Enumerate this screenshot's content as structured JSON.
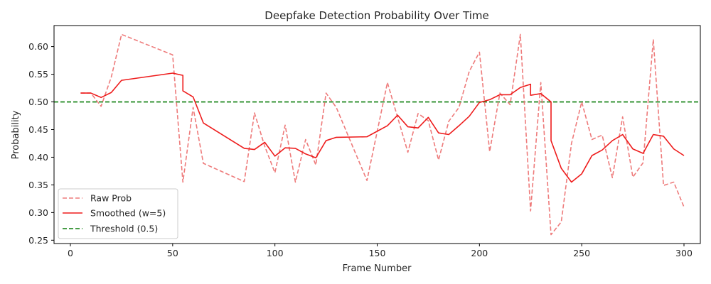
{
  "chart_data": {
    "type": "line",
    "title": "Deepfake Detection Probability Over Time",
    "xlabel": "Frame Number",
    "ylabel": "Probability",
    "xlim": [
      -8,
      308
    ],
    "ylim": [
      0.244,
      0.638
    ],
    "xticks": [
      0,
      50,
      100,
      150,
      200,
      250,
      300
    ],
    "yticks": [
      0.25,
      0.3,
      0.35,
      0.4,
      0.45,
      0.5,
      0.55,
      0.6
    ],
    "grid": false,
    "legend": "bottom-left",
    "series": [
      {
        "name": "Raw Prob",
        "color": "#ee7b7b",
        "style": "dashed",
        "x": [
          5,
          10,
          15,
          20,
          25,
          50,
          55,
          60,
          65,
          85,
          90,
          95,
          100,
          105,
          110,
          115,
          120,
          125,
          130,
          145,
          155,
          165,
          170,
          175,
          180,
          185,
          190,
          195,
          200,
          205,
          210,
          215,
          220,
          225,
          230,
          235,
          240,
          245,
          250,
          255,
          260,
          265,
          270,
          275,
          280,
          285,
          290,
          295,
          300
        ],
        "values": [
          0.516,
          0.516,
          0.492,
          0.545,
          0.622,
          0.585,
          0.355,
          0.49,
          0.389,
          0.356,
          0.48,
          0.42,
          0.372,
          0.458,
          0.355,
          0.432,
          0.386,
          0.516,
          0.49,
          0.358,
          0.535,
          0.409,
          0.479,
          0.466,
          0.395,
          0.465,
          0.49,
          0.555,
          0.59,
          0.41,
          0.516,
          0.495,
          0.622,
          0.303,
          0.535,
          0.26,
          0.283,
          0.425,
          0.5,
          0.432,
          0.44,
          0.363,
          0.473,
          0.364,
          0.39,
          0.613,
          0.349,
          0.355,
          0.31
        ]
      },
      {
        "name": "Smoothed (w=5)",
        "color": "#ee1c1c",
        "style": "solid",
        "x": [
          5,
          10,
          15,
          20,
          25,
          50,
          55,
          55,
          60,
          65,
          85,
          90,
          95,
          100,
          105,
          110,
          115,
          120,
          125,
          130,
          145,
          155,
          160,
          165,
          170,
          175,
          180,
          185,
          190,
          195,
          200,
          205,
          210,
          215,
          220,
          225,
          225,
          230,
          235,
          235,
          240,
          245,
          250,
          255,
          260,
          265,
          270,
          275,
          280,
          285,
          290,
          295,
          300
        ],
        "values": [
          0.516,
          0.516,
          0.508,
          0.517,
          0.539,
          0.552,
          0.548,
          0.52,
          0.509,
          0.462,
          0.416,
          0.414,
          0.427,
          0.402,
          0.417,
          0.416,
          0.406,
          0.399,
          0.43,
          0.436,
          0.437,
          0.457,
          0.476,
          0.455,
          0.453,
          0.472,
          0.444,
          0.441,
          0.457,
          0.474,
          0.499,
          0.504,
          0.513,
          0.513,
          0.526,
          0.532,
          0.512,
          0.515,
          0.5,
          0.43,
          0.38,
          0.355,
          0.37,
          0.403,
          0.413,
          0.43,
          0.441,
          0.415,
          0.407,
          0.441,
          0.438,
          0.415,
          0.403
        ]
      }
    ],
    "threshold": {
      "name": "Threshold (0.5)",
      "value": 0.5,
      "color": "#0a7d0a",
      "style": "dashed"
    }
  }
}
